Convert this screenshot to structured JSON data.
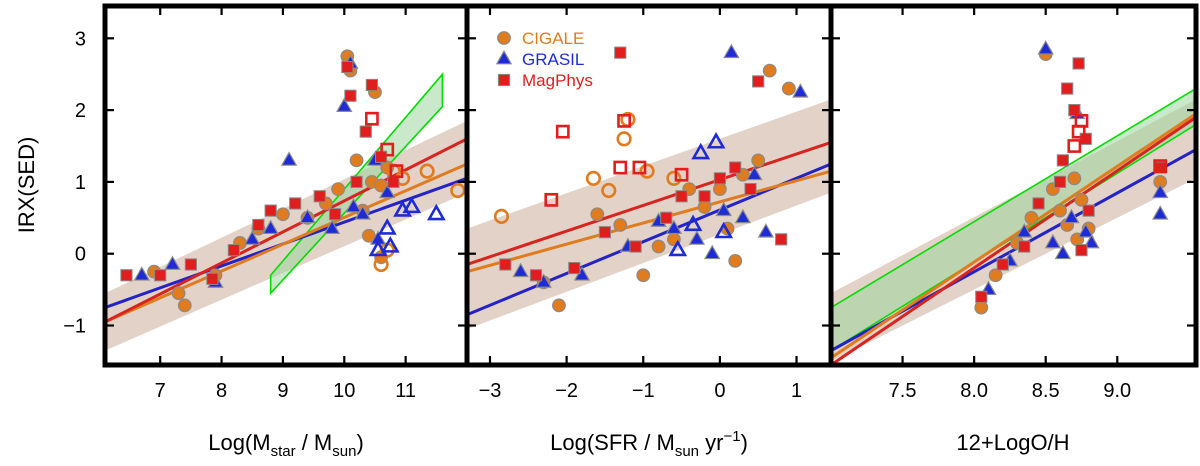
{
  "figure": {
    "ylabel": "IRX(SED)",
    "colors": {
      "cigale": "#e07b1e",
      "cigale_edge": "#8a8a8a",
      "grasil": "#1e2bd6",
      "magphys": "#e01e1e",
      "fit_cigale": "#e07b1e",
      "fit_grasil": "#2323c8",
      "fit_magphys": "#d8231f",
      "band": "#d9c3b5",
      "green": "#00dd00",
      "green_fill": "#9fd69f"
    },
    "legend": [
      {
        "label": "CIGALE",
        "marker": "circle",
        "color": "#e07b1e"
      },
      {
        "label": "GRASIL",
        "marker": "triangle",
        "color": "#1e2bd6"
      },
      {
        "label": "MagPhys",
        "marker": "square",
        "color": "#e01e1e"
      }
    ]
  },
  "chart_data": [
    {
      "type": "scatter",
      "xlabel": "Log(M_star / M_sun)",
      "xlabel_parts": {
        "pre": "Log(M",
        "sub1": "star",
        "mid": " / M",
        "sub2": "sun",
        "post": ")"
      },
      "ylabel": "IRX(SED)",
      "xlim": [
        6.1,
        12.0
      ],
      "ylim": [
        -1.55,
        3.45
      ],
      "xticks": [
        "7",
        "8",
        "9",
        "10",
        "11"
      ],
      "yticks": [
        "−1",
        "0",
        "1",
        "2",
        "3"
      ],
      "band": {
        "x": [
          6.1,
          12.0
        ],
        "upper": [
          -0.55,
          1.85
        ],
        "lower": [
          -1.35,
          0.85
        ]
      },
      "green_band": {
        "x": [
          8.8,
          11.6
        ],
        "upper": [
          -0.3,
          2.5
        ],
        "lower": [
          -0.55,
          2.05
        ]
      },
      "fits": [
        {
          "series": "GRASIL",
          "x": [
            6.1,
            12.0
          ],
          "y": [
            -0.75,
            1.05
          ]
        },
        {
          "series": "CIGALE",
          "x": [
            6.1,
            12.0
          ],
          "y": [
            -0.95,
            1.25
          ]
        },
        {
          "series": "MagPhys",
          "x": [
            6.1,
            12.0
          ],
          "y": [
            -0.95,
            1.6
          ]
        }
      ],
      "series": [
        {
          "name": "CIGALE",
          "points": [
            [
              6.9,
              -0.25
            ],
            [
              7.3,
              -0.55
            ],
            [
              7.4,
              -0.72
            ],
            [
              7.9,
              -0.3
            ],
            [
              8.3,
              0.15
            ],
            [
              8.6,
              0.35
            ],
            [
              9.0,
              0.55
            ],
            [
              9.4,
              0.5
            ],
            [
              9.7,
              0.7
            ],
            [
              9.9,
              0.9
            ],
            [
              10.05,
              2.75
            ],
            [
              10.1,
              2.55
            ],
            [
              10.2,
              1.3
            ],
            [
              10.3,
              0.6
            ],
            [
              10.45,
              1.0
            ],
            [
              10.6,
              0.95
            ],
            [
              10.7,
              1.2
            ],
            [
              10.5,
              2.25
            ],
            [
              10.4,
              0.25
            ],
            [
              10.6,
              -0.05
            ]
          ]
        },
        {
          "name": "CIGALE-open",
          "points": [
            [
              10.6,
              -0.15
            ],
            [
              10.7,
              0.05
            ],
            [
              10.8,
              1.15
            ],
            [
              10.95,
              1.05
            ],
            [
              11.35,
              1.15
            ],
            [
              11.85,
              0.88
            ]
          ]
        },
        {
          "name": "GRASIL",
          "points": [
            [
              6.7,
              -0.3
            ],
            [
              7.2,
              -0.15
            ],
            [
              7.9,
              -0.4
            ],
            [
              8.5,
              0.2
            ],
            [
              8.8,
              0.35
            ],
            [
              9.1,
              1.3
            ],
            [
              9.4,
              0.5
            ],
            [
              9.8,
              0.35
            ],
            [
              10.0,
              2.05
            ],
            [
              10.1,
              2.65
            ],
            [
              10.15,
              0.65
            ],
            [
              10.3,
              0.55
            ],
            [
              10.5,
              1.3
            ],
            [
              10.55,
              0.2
            ],
            [
              10.7,
              0.85
            ]
          ]
        },
        {
          "name": "GRASIL-open",
          "points": [
            [
              10.55,
              0.05
            ],
            [
              10.75,
              0.1
            ],
            [
              10.7,
              0.35
            ],
            [
              10.95,
              0.6
            ],
            [
              11.1,
              0.65
            ],
            [
              11.5,
              0.55
            ]
          ]
        },
        {
          "name": "MagPhys",
          "points": [
            [
              6.45,
              -0.3
            ],
            [
              7.0,
              -0.3
            ],
            [
              7.5,
              -0.15
            ],
            [
              7.85,
              -0.35
            ],
            [
              8.2,
              0.05
            ],
            [
              8.6,
              0.4
            ],
            [
              8.8,
              0.6
            ],
            [
              9.2,
              0.7
            ],
            [
              9.6,
              0.8
            ],
            [
              9.85,
              0.55
            ],
            [
              10.05,
              2.6
            ],
            [
              10.1,
              2.2
            ],
            [
              10.2,
              1.0
            ],
            [
              10.35,
              1.7
            ],
            [
              10.45,
              2.35
            ],
            [
              10.6,
              1.35
            ],
            [
              10.8,
              1.0
            ]
          ]
        },
        {
          "name": "MagPhys-open",
          "points": [
            [
              10.45,
              1.88
            ],
            [
              10.7,
              1.45
            ],
            [
              10.85,
              1.15
            ]
          ]
        }
      ]
    },
    {
      "type": "scatter",
      "xlabel": "Log(SFR / M_sun yr^-1)",
      "xlabel_parts": {
        "pre": "Log(SFR / M",
        "sub1": "sun",
        "mid": " yr",
        "sup": "−1",
        "post": ")"
      },
      "xlim": [
        -3.3,
        1.45
      ],
      "ylim": [
        -1.55,
        3.45
      ],
      "xticks": [
        "−3",
        "−2",
        "−1",
        "0",
        "1"
      ],
      "yticks": [
        "−1",
        "0",
        "1",
        "2",
        "3"
      ],
      "band": {
        "x": [
          -3.3,
          1.45
        ],
        "upper": [
          0.35,
          2.15
        ],
        "lower": [
          -1.05,
          0.85
        ]
      },
      "fits": [
        {
          "series": "GRASIL",
          "x": [
            -3.3,
            1.45
          ],
          "y": [
            -0.85,
            1.25
          ]
        },
        {
          "series": "CIGALE",
          "x": [
            -3.3,
            1.45
          ],
          "y": [
            -0.25,
            1.15
          ]
        },
        {
          "series": "MagPhys",
          "x": [
            -3.3,
            1.45
          ],
          "y": [
            -0.15,
            1.55
          ]
        }
      ],
      "series": [
        {
          "name": "CIGALE",
          "points": [
            [
              -2.3,
              -0.4
            ],
            [
              -2.1,
              -0.72
            ],
            [
              -1.6,
              0.55
            ],
            [
              -1.3,
              0.4
            ],
            [
              -1.0,
              -0.3
            ],
            [
              -0.6,
              0.2
            ],
            [
              -0.4,
              0.9
            ],
            [
              -0.2,
              0.65
            ],
            [
              0.0,
              0.9
            ],
            [
              0.1,
              0.35
            ],
            [
              0.3,
              1.1
            ],
            [
              0.5,
              1.3
            ],
            [
              0.65,
              2.55
            ],
            [
              0.9,
              2.3
            ],
            [
              -0.8,
              0.1
            ],
            [
              0.2,
              -0.1
            ]
          ]
        },
        {
          "name": "CIGALE-open",
          "points": [
            [
              -2.85,
              0.52
            ],
            [
              -1.65,
              1.05
            ],
            [
              -1.45,
              0.88
            ],
            [
              -1.25,
              1.6
            ],
            [
              -1.2,
              1.87
            ],
            [
              -0.95,
              1.15
            ],
            [
              -0.6,
              1.05
            ]
          ]
        },
        {
          "name": "GRASIL",
          "points": [
            [
              -2.6,
              -0.25
            ],
            [
              -2.3,
              -0.4
            ],
            [
              -1.8,
              -0.3
            ],
            [
              -1.2,
              0.1
            ],
            [
              -0.8,
              0.45
            ],
            [
              -0.6,
              0.35
            ],
            [
              -0.3,
              0.2
            ],
            [
              -0.1,
              0.0
            ],
            [
              0.05,
              0.6
            ],
            [
              0.15,
              2.8
            ],
            [
              0.3,
              0.5
            ],
            [
              0.45,
              1.1
            ],
            [
              1.05,
              2.25
            ],
            [
              0.6,
              0.3
            ]
          ]
        },
        {
          "name": "GRASIL-open",
          "points": [
            [
              -0.55,
              0.05
            ],
            [
              -0.35,
              0.4
            ],
            [
              -0.25,
              1.4
            ],
            [
              -0.05,
              1.55
            ],
            [
              0.05,
              0.3
            ]
          ]
        },
        {
          "name": "MagPhys",
          "points": [
            [
              -2.8,
              -0.15
            ],
            [
              -2.4,
              -0.3
            ],
            [
              -1.9,
              -0.2
            ],
            [
              -1.5,
              0.3
            ],
            [
              -1.1,
              0.1
            ],
            [
              -0.7,
              0.5
            ],
            [
              -0.5,
              0.8
            ],
            [
              -0.2,
              0.8
            ],
            [
              0.0,
              1.05
            ],
            [
              0.2,
              1.2
            ],
            [
              0.4,
              0.9
            ],
            [
              0.8,
              0.2
            ],
            [
              -1.3,
              2.8
            ],
            [
              0.5,
              2.4
            ]
          ]
        },
        {
          "name": "MagPhys-open",
          "points": [
            [
              -2.2,
              0.75
            ],
            [
              -2.05,
              1.7
            ],
            [
              -1.3,
              1.2
            ],
            [
              -1.25,
              1.85
            ],
            [
              -1.05,
              1.2
            ],
            [
              -0.5,
              1.1
            ]
          ]
        }
      ]
    },
    {
      "type": "scatter",
      "xlabel": "12+LogO/H",
      "xlim": [
        7.0,
        9.55
      ],
      "ylim": [
        -1.55,
        3.45
      ],
      "xticks": [
        "7.5",
        "8.0",
        "8.5",
        "9.0"
      ],
      "yticks": [
        "−1",
        "0",
        "1",
        "2",
        "3"
      ],
      "band": {
        "x": [
          7.0,
          9.55
        ],
        "upper": [
          -0.55,
          2.15
        ],
        "lower": [
          -1.5,
          1.05
        ]
      },
      "green_band": {
        "x": [
          7.0,
          9.55
        ],
        "upper": [
          -0.75,
          2.3
        ],
        "lower": [
          -1.35,
          1.8
        ]
      },
      "fits": [
        {
          "series": "GRASIL",
          "x": [
            7.0,
            9.55
          ],
          "y": [
            -1.35,
            1.45
          ]
        },
        {
          "series": "CIGALE",
          "x": [
            7.0,
            9.55
          ],
          "y": [
            -1.45,
            1.95
          ]
        },
        {
          "series": "MagPhys",
          "x": [
            7.0,
            9.55
          ],
          "y": [
            -1.55,
            1.9
          ]
        }
      ],
      "series": [
        {
          "name": "CIGALE",
          "points": [
            [
              8.05,
              -0.75
            ],
            [
              8.15,
              -0.3
            ],
            [
              8.3,
              0.15
            ],
            [
              8.4,
              0.5
            ],
            [
              8.5,
              2.78
            ],
            [
              8.55,
              0.9
            ],
            [
              8.6,
              0.6
            ],
            [
              8.65,
              0.4
            ],
            [
              8.7,
              1.05
            ],
            [
              8.75,
              0.75
            ],
            [
              8.8,
              0.35
            ],
            [
              9.3,
              1.0
            ],
            [
              8.72,
              0.2
            ]
          ]
        },
        {
          "name": "GRASIL",
          "points": [
            [
              8.1,
              -0.5
            ],
            [
              8.25,
              -0.1
            ],
            [
              8.35,
              0.3
            ],
            [
              8.5,
              2.85
            ],
            [
              8.55,
              0.15
            ],
            [
              8.62,
              0.0
            ],
            [
              8.68,
              0.5
            ],
            [
              8.72,
              1.95
            ],
            [
              8.78,
              0.3
            ],
            [
              8.82,
              0.15
            ],
            [
              9.3,
              0.55
            ],
            [
              9.3,
              0.85
            ]
          ]
        },
        {
          "name": "MagPhys",
          "points": [
            [
              8.05,
              -0.6
            ],
            [
              8.2,
              -0.15
            ],
            [
              8.35,
              0.1
            ],
            [
              8.45,
              0.7
            ],
            [
              8.6,
              1.0
            ],
            [
              8.62,
              1.3
            ],
            [
              8.65,
              2.3
            ],
            [
              8.7,
              2.0
            ],
            [
              8.73,
              2.65
            ],
            [
              8.78,
              1.6
            ],
            [
              8.8,
              0.6
            ],
            [
              8.75,
              0.05
            ],
            [
              9.3,
              1.2
            ]
          ]
        },
        {
          "name": "MagPhys-open",
          "points": [
            [
              8.7,
              1.5
            ],
            [
              8.73,
              1.7
            ],
            [
              8.75,
              1.85
            ],
            [
              9.3,
              1.22
            ]
          ]
        }
      ]
    }
  ]
}
